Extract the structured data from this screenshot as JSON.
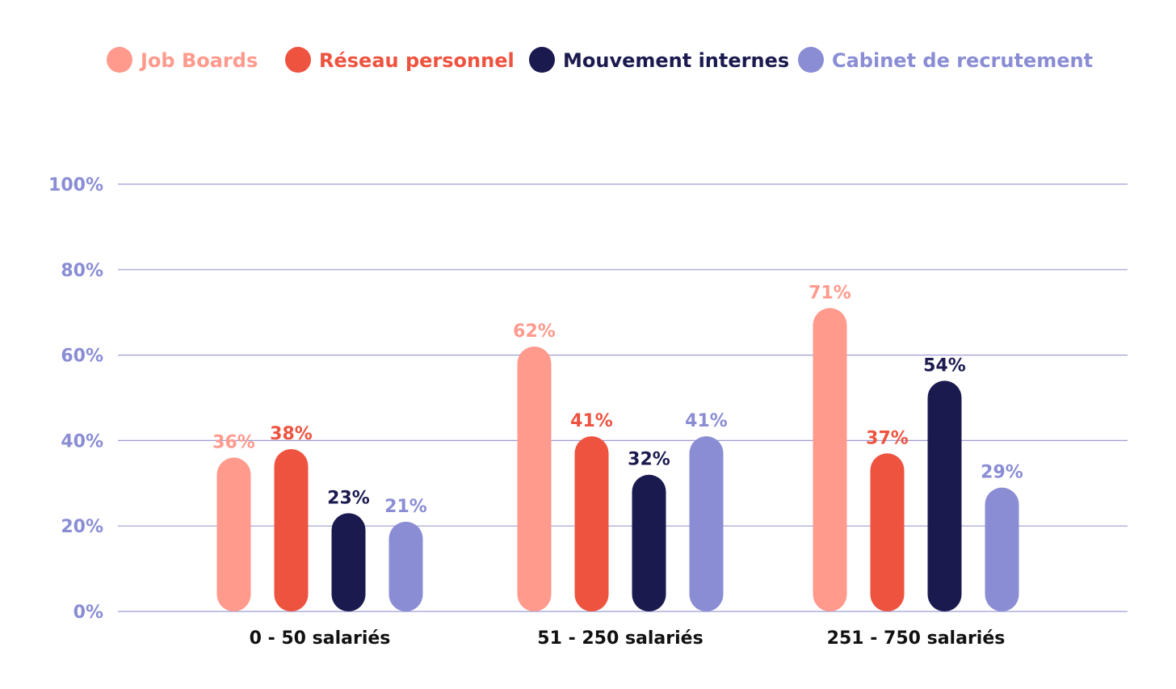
{
  "chart_data": {
    "type": "bar",
    "title": "",
    "xlabel": "",
    "ylabel": "",
    "ylim": [
      0,
      100
    ],
    "grid": true,
    "legend_position": "top",
    "categories": [
      "0 - 50 salariés",
      "51 - 250 salariés",
      "251 - 750 salariés"
    ],
    "y_ticks": [
      0,
      20,
      40,
      60,
      80,
      100
    ],
    "y_tick_labels": [
      "0%",
      "20%",
      "40%",
      "60%",
      "80%",
      "100%"
    ],
    "series": [
      {
        "name": "Job Boards",
        "color": "#FF9A8D",
        "values": [
          36,
          62,
          71
        ],
        "labels": [
          "36%",
          "62%",
          "71%"
        ]
      },
      {
        "name": "Réseau personnel",
        "color": "#EE5340",
        "values": [
          38,
          41,
          37
        ],
        "labels": [
          "38%",
          "41%",
          "37%"
        ]
      },
      {
        "name": "Mouvement internes",
        "color": "#1B1A4F",
        "values": [
          23,
          32,
          54
        ],
        "labels": [
          "23%",
          "32%",
          "54%"
        ]
      },
      {
        "name": "Cabinet de recrutement",
        "color": "#8A8DD4",
        "values": [
          21,
          41,
          29
        ],
        "labels": [
          "21%",
          "41%",
          "29%"
        ]
      }
    ],
    "colors": {
      "grid": "#9C9CD4",
      "tick_text": "#8A8DD4",
      "category_text": "#111111"
    }
  }
}
